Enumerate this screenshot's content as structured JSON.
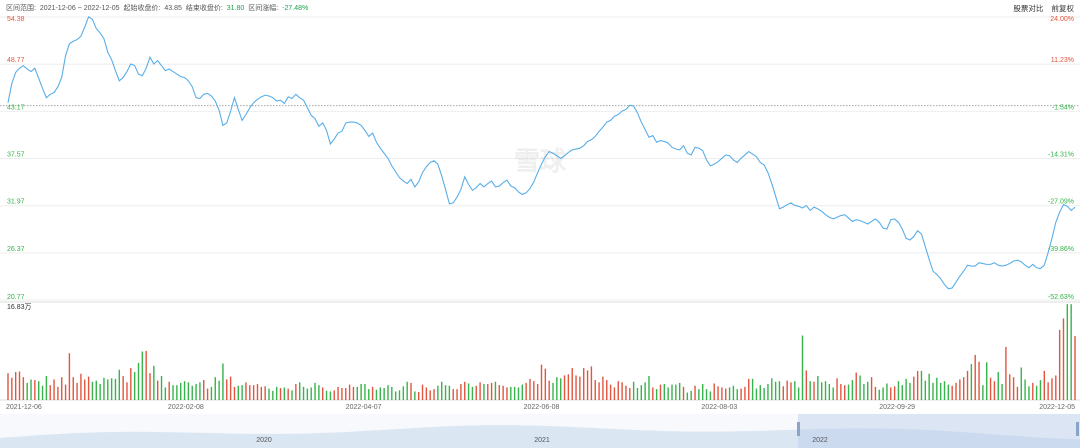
{
  "header": {
    "range_label": "区间范围:",
    "range_value": "2021-12-06 ~ 2022-12-05",
    "start_close_label": "起始收盘价:",
    "start_close_value": "43.85",
    "end_close_label": "结束收盘价:",
    "end_close_value": "31.80",
    "change_label": "区间涨幅:",
    "change_value": "-27.48%"
  },
  "controls": {
    "compare_label": "股票对比",
    "adjust_label": "前复权"
  },
  "watermark": "雪球",
  "colors": {
    "line": "#5aaee8",
    "up": "#e2553f",
    "down": "#36b34a",
    "grid": "#eeeeee",
    "baseline": "#999999",
    "navigator_fill": "#dbe6f3"
  },
  "chart_data": {
    "type": "line",
    "x_labels": [
      "2021-12-06",
      "2022-02-08",
      "2022-04-07",
      "2022-06-08",
      "2022-08-03",
      "2022-09-29",
      "2022-12-05"
    ],
    "price_axis": [
      54.38,
      48.77,
      43.17,
      37.57,
      31.97,
      26.37,
      20.77
    ],
    "percent_axis": [
      "24.00%",
      "11.23%",
      "-1.54%",
      "-14.31%",
      "-27.09%",
      "-39.86%",
      "-52.63%"
    ],
    "ylim": [
      20.77,
      54.38
    ],
    "start_price": 43.85,
    "volume_max_label": "16.83万",
    "volume_max": 16.83,
    "navigator_labels": [
      "2020",
      "2021",
      "2022"
    ],
    "prices": [
      44.2,
      46.5,
      47.8,
      48.3,
      48.6,
      48.2,
      47.9,
      48.3,
      47.1,
      45.9,
      44.8,
      45.2,
      45.4,
      46.1,
      47.2,
      49.8,
      51.2,
      51.5,
      51.7,
      52.1,
      53.2,
      54.4,
      54.1,
      53.0,
      52.5,
      51.8,
      50.2,
      49.3,
      48.0,
      46.8,
      47.2,
      47.9,
      48.8,
      48.6,
      47.6,
      47.4,
      48.3,
      49.6,
      48.8,
      49.2,
      48.6,
      48.0,
      48.2,
      47.9,
      47.6,
      47.3,
      47.2,
      46.8,
      46.1,
      44.8,
      44.7,
      45.2,
      45.3,
      45.0,
      44.4,
      43.3,
      41.5,
      41.8,
      43.2,
      44.8,
      43.4,
      42.1,
      42.8,
      43.6,
      44.2,
      44.6,
      44.9,
      45.1,
      45.0,
      44.8,
      44.4,
      44.5,
      44.1,
      44.9,
      44.7,
      45.2,
      44.8,
      44.5,
      43.6,
      42.7,
      42.3,
      41.4,
      41.8,
      40.9,
      39.3,
      39.9,
      40.6,
      40.8,
      41.8,
      41.9,
      41.9,
      41.8,
      41.5,
      40.9,
      40.2,
      40.6,
      39.5,
      38.8,
      38.2,
      37.6,
      36.7,
      36.0,
      35.3,
      34.9,
      34.6,
      35.1,
      34.2,
      34.8,
      35.9,
      36.6,
      37.1,
      37.3,
      36.9,
      35.5,
      33.9,
      32.2,
      32.3,
      33.0,
      33.9,
      35.4,
      34.5,
      33.8,
      34.1,
      34.6,
      34.2,
      34.6,
      34.9,
      34.2,
      34.3,
      34.7,
      35.0,
      34.3,
      34.1,
      33.6,
      33.3,
      33.5,
      34.0,
      34.8,
      35.9,
      36.9,
      37.8,
      38.4,
      38.2,
      37.9,
      37.6,
      37.9,
      38.3,
      38.6,
      38.7,
      38.8,
      39.1,
      39.6,
      39.8,
      40.2,
      40.8,
      41.3,
      41.9,
      42.1,
      42.6,
      42.8,
      43.2,
      43.4,
      43.9,
      43.8,
      43.0,
      41.9,
      41.0,
      40.1,
      40.3,
      39.5,
      39.7,
      39.6,
      39.4,
      38.9,
      38.7,
      38.6,
      39.1,
      38.2,
      38.0,
      38.9,
      38.8,
      38.5,
      37.4,
      36.7,
      36.9,
      37.2,
      37.6,
      38.0,
      37.9,
      37.4,
      37.1,
      37.6,
      38.0,
      38.4,
      38.1,
      37.8,
      37.1,
      36.8,
      35.9,
      34.6,
      33.1,
      31.6,
      31.8,
      32.1,
      32.3,
      32.0,
      31.9,
      31.7,
      32.0,
      31.4,
      31.8,
      31.6,
      31.3,
      30.9,
      30.6,
      30.4,
      30.6,
      30.8,
      30.9,
      30.5,
      30.1,
      30.3,
      30.2,
      30.0,
      29.8,
      30.1,
      30.4,
      30.0,
      29.3,
      29.2,
      30.3,
      30.4,
      30.0,
      29.2,
      28.1,
      27.9,
      28.3,
      29.0,
      28.6,
      27.1,
      25.6,
      24.2,
      23.8,
      23.3,
      22.6,
      22.1,
      22.2,
      22.9,
      23.6,
      24.2,
      24.9,
      24.8,
      24.8,
      25.2,
      25.1,
      25.0,
      25.0,
      25.2,
      24.9,
      24.8,
      24.9,
      25.1,
      25.4,
      25.5,
      25.3,
      24.9,
      24.6,
      25.0,
      24.6,
      24.5,
      24.9,
      26.4,
      28.1,
      30.0,
      31.2,
      32.1,
      31.9,
      31.4,
      31.8
    ],
    "volumes": [
      4.7,
      3.9,
      4.9,
      5.0,
      4.0,
      3.0,
      3.6,
      3.5,
      3.3,
      2.5,
      4.2,
      2.6,
      3.6,
      2.3,
      4.0,
      2.7,
      8.2,
      4.0,
      3.0,
      4.6,
      3.6,
      4.1,
      3.2,
      3.4,
      2.8,
      3.9,
      3.6,
      3.8,
      3.7,
      5.3,
      4.2,
      3.1,
      5.6,
      4.9,
      6.5,
      8.5,
      8.6,
      4.7,
      6.0,
      3.4,
      4.2,
      2.2,
      3.2,
      2.6,
      2.6,
      3.0,
      3.3,
      3.1,
      2.5,
      2.8,
      3.1,
      3.5,
      2.0,
      2.3,
      4.0,
      3.4,
      6.4,
      3.6,
      4.1,
      2.3,
      2.5,
      2.6,
      3.1,
      2.6,
      2.6,
      2.8,
      2.3,
      2.4,
      2.0,
      1.6,
      2.3,
      2.1,
      2.2,
      2.0,
      1.7,
      2.8,
      3.1,
      2.3,
      2.0,
      2.2,
      3.0,
      2.6,
      2.2,
      1.6,
      1.5,
      1.7,
      2.3,
      2.1,
      2.1,
      2.7,
      2.3,
      2.3,
      2.8,
      2.8,
      1.9,
      2.3,
      1.8,
      2.2,
      2.1,
      2.6,
      2.3,
      1.5,
      1.7,
      2.4,
      3.2,
      3.0,
      1.5,
      1.4,
      2.7,
      2.2,
      1.7,
      1.9,
      2.5,
      3.2,
      2.6,
      2.5,
      1.9,
      1.9,
      2.8,
      3.2,
      2.9,
      2.3,
      2.5,
      3.1,
      2.8,
      2.8,
      3.0,
      3.2,
      2.6,
      2.5,
      2.2,
      2.3,
      2.3,
      2.2,
      2.7,
      3.0,
      3.7,
      3.3,
      2.8,
      6.2,
      5.5,
      3.4,
      3.0,
      4.0,
      3.8,
      4.3,
      4.5,
      5.6,
      4.3,
      4.1,
      5.6,
      5.2,
      5.9,
      3.5,
      3.1,
      4.1,
      3.5,
      2.7,
      2.2,
      3.3,
      3.1,
      2.5,
      2.1,
      3.2,
      2.1,
      2.6,
      3.1,
      4.2,
      2.2,
      1.9,
      2.7,
      2.8,
      2.2,
      2.7,
      2.7,
      3.0,
      2.3,
      1.3,
      1.6,
      2.5,
      1.9,
      2.8,
      1.9,
      1.5,
      2.9,
      2.4,
      2.2,
      2.0,
      2.2,
      2.5,
      1.9,
      2.0,
      2.3,
      3.7,
      3.7,
      2.0,
      2.6,
      2.1,
      2.8,
      3.8,
      3.2,
      3.3,
      2.4,
      3.4,
      3.1,
      3.3,
      2.2,
      11.3,
      5.2,
      3.3,
      3.2,
      4.2,
      3.1,
      3.3,
      2.8,
      2.2,
      3.8,
      2.8,
      2.6,
      2.7,
      3.5,
      4.8,
      4.3,
      2.8,
      3.2,
      4.0,
      2.3,
      1.8,
      2.2,
      2.9,
      2.2,
      2.4,
      3.3,
      2.6,
      3.7,
      3.0,
      4.1,
      5.1,
      5.1,
      3.4,
      4.6,
      3.0,
      3.9,
      3.0,
      3.3,
      2.7,
      2.5,
      3.0,
      3.6,
      4.0,
      5.1,
      6.3,
      7.9,
      6.7,
      2.6,
      6.6,
      3.9,
      3.3,
      4.9,
      2.8,
      9.3,
      4.5,
      4.0,
      2.3,
      5.7,
      3.6,
      2.4,
      3.0,
      2.5,
      3.5,
      5.1,
      3.1,
      3.8,
      4.3,
      12.3,
      14.3,
      16.8,
      16.8,
      11.2
    ]
  }
}
